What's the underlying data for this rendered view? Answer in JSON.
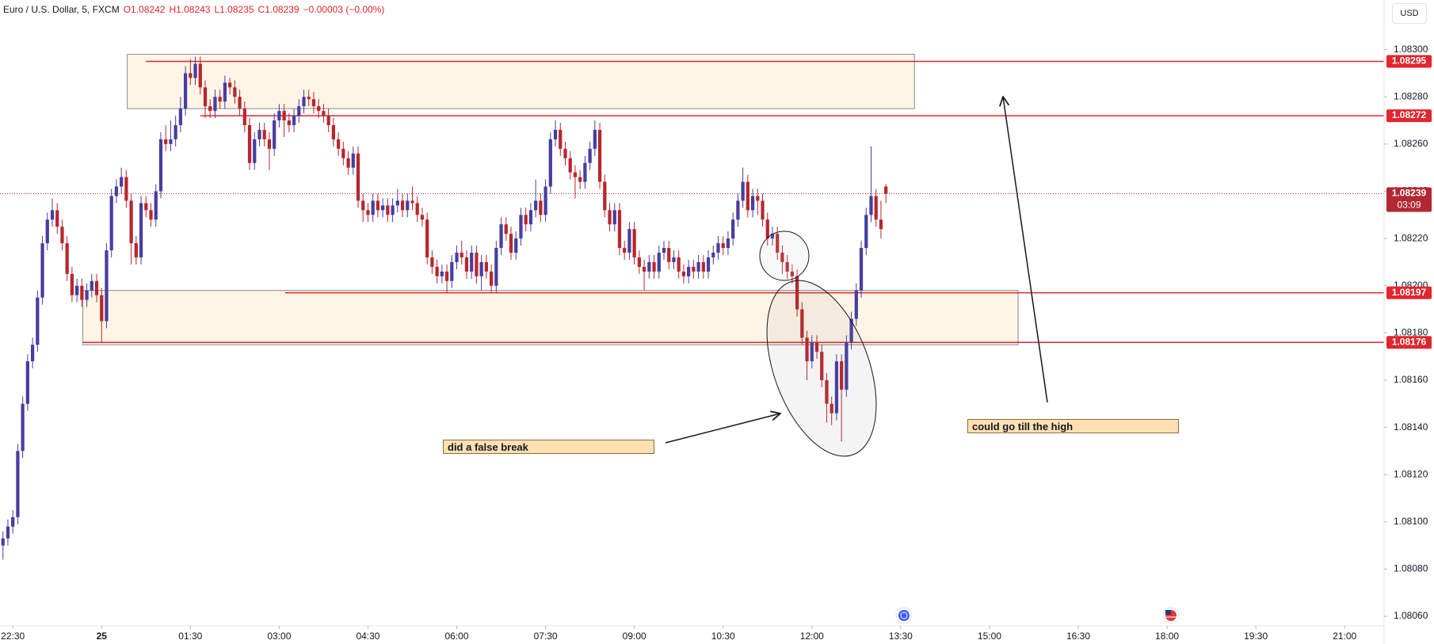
{
  "chart_data": {
    "type": "candlestick",
    "title": "Euro / U.S. Dollar, 5, FXCM",
    "header": [
      "O1.08242",
      "H1.08243",
      "L1.08235",
      "C1.08239",
      "−0.00003 (−0.00%)"
    ],
    "currency": "USD",
    "up_color": "#463ea0",
    "down_color": "#b8262d",
    "x": [
      -100,
      -95,
      -90,
      -85,
      -80,
      -75,
      -70,
      -65,
      -60,
      -55,
      -50,
      -45,
      -40,
      -35,
      -30,
      -25,
      -20,
      -15,
      -10,
      -5,
      0,
      5,
      10,
      15,
      20,
      25,
      30,
      35,
      40,
      45,
      50,
      55,
      60,
      65,
      70,
      75,
      80,
      85,
      90,
      95,
      100,
      105,
      110,
      115,
      120,
      125,
      130,
      135,
      140,
      145,
      150,
      155,
      160,
      165,
      170,
      175,
      180,
      185,
      190,
      195,
      200,
      205,
      210,
      215,
      220,
      225,
      230,
      235,
      240,
      245,
      250,
      255,
      260,
      265,
      270,
      275,
      280,
      285,
      290,
      295,
      300,
      305,
      310,
      315,
      320,
      325,
      330,
      335,
      340,
      345,
      350,
      355,
      360,
      365,
      370,
      375,
      380,
      385,
      390,
      395,
      400,
      405,
      410,
      415,
      420,
      425,
      430,
      435,
      440,
      445,
      450,
      455,
      460,
      465,
      470,
      475,
      480,
      485,
      490,
      495,
      500,
      505,
      510,
      515,
      520,
      525,
      530,
      535,
      540,
      545,
      550,
      555,
      560,
      565,
      570,
      575,
      580,
      585,
      590,
      595,
      600,
      605,
      610,
      615,
      620,
      625,
      630,
      635,
      640,
      645,
      650,
      655,
      660,
      665,
      670,
      675,
      680,
      685,
      690,
      695,
      700,
      705,
      710,
      715,
      720,
      725,
      730,
      735,
      740,
      745,
      750,
      755,
      760,
      765,
      770,
      775,
      780,
      785,
      790,
      795
    ],
    "open": [
      1.0809,
      1.08093,
      1.08098,
      1.08102,
      1.0813,
      1.0815,
      1.08168,
      1.08175,
      1.08195,
      1.08218,
      1.08228,
      1.08232,
      1.08225,
      1.08218,
      1.08205,
      1.08196,
      1.082,
      1.08194,
      1.08198,
      1.08202,
      1.08196,
      1.08185,
      1.08215,
      1.08238,
      1.08242,
      1.08246,
      1.08236,
      1.08218,
      1.08212,
      1.08235,
      1.08232,
      1.08228,
      1.0824,
      1.08262,
      1.0826,
      1.08262,
      1.08268,
      1.08275,
      1.0829,
      1.08288,
      1.08294,
      1.08284,
      1.08276,
      1.08274,
      1.0828,
      1.08278,
      1.08286,
      1.08284,
      1.0828,
      1.08275,
      1.08268,
      1.08252,
      1.08262,
      1.08266,
      1.08262,
      1.08258,
      1.0827,
      1.08274,
      1.0827,
      1.08268,
      1.08272,
      1.08276,
      1.0828,
      1.08279,
      1.08276,
      1.08274,
      1.08272,
      1.08268,
      1.08262,
      1.08258,
      1.08254,
      1.0825,
      1.08256,
      1.08236,
      1.08232,
      1.0823,
      1.08236,
      1.08232,
      1.08234,
      1.0823,
      1.08234,
      1.08236,
      1.08232,
      1.08236,
      1.08235,
      1.0823,
      1.08228,
      1.08212,
      1.08208,
      1.08204,
      1.08206,
      1.08202,
      1.0821,
      1.08214,
      1.08212,
      1.08206,
      1.08214,
      1.08204,
      1.0821,
      1.08206,
      1.082,
      1.08216,
      1.08226,
      1.08222,
      1.08214,
      1.0822,
      1.0823,
      1.08226,
      1.08232,
      1.08236,
      1.0823,
      1.08242,
      1.08262,
      1.08266,
      1.08258,
      1.08254,
      1.08248,
      1.08246,
      1.08244,
      1.08252,
      1.08258,
      1.08266,
      1.08244,
      1.08232,
      1.08226,
      1.08232,
      1.08216,
      1.08214,
      1.08224,
      1.08212,
      1.08208,
      1.08206,
      1.0821,
      1.08206,
      1.08214,
      1.08216,
      1.0821,
      1.08212,
      1.08206,
      1.08204,
      1.08208,
      1.08206,
      1.0821,
      1.08206,
      1.08212,
      1.08214,
      1.08218,
      1.08216,
      1.0822,
      1.08228,
      1.08236,
      1.08244,
      1.08232,
      1.08238,
      1.08236,
      1.08228,
      1.0822,
      1.08222,
      1.08214,
      1.0821,
      1.08206,
      1.08204,
      1.0819,
      1.08178,
      1.08168,
      1.08176,
      1.08172,
      1.0816,
      1.0815,
      1.08146,
      1.08168,
      1.08156,
      1.08176,
      1.08186,
      1.08198,
      1.08216,
      1.0823,
      1.08238,
      1.08228,
      1.08242
    ],
    "high": [
      1.08096,
      1.08101,
      1.08105,
      1.08133,
      1.08153,
      1.08171,
      1.08178,
      1.08198,
      1.08221,
      1.08231,
      1.08237,
      1.08235,
      1.08228,
      1.08221,
      1.08208,
      1.08203,
      1.08203,
      1.08201,
      1.08205,
      1.08205,
      1.08199,
      1.08218,
      1.08241,
      1.08245,
      1.0825,
      1.08249,
      1.08239,
      1.08221,
      1.08238,
      1.08238,
      1.08235,
      1.08243,
      1.08265,
      1.08268,
      1.0827,
      1.08272,
      1.0828,
      1.08293,
      1.08296,
      1.08297,
      1.08297,
      1.08287,
      1.08279,
      1.08283,
      1.08283,
      1.08289,
      1.08288,
      1.08287,
      1.08283,
      1.08278,
      1.08271,
      1.08265,
      1.08269,
      1.08269,
      1.08265,
      1.08273,
      1.08277,
      1.08277,
      1.08273,
      1.08275,
      1.08279,
      1.08283,
      1.08283,
      1.08282,
      1.08279,
      1.08277,
      1.08275,
      1.08271,
      1.08265,
      1.08261,
      1.08257,
      1.08259,
      1.08259,
      1.08239,
      1.08235,
      1.08239,
      1.08239,
      1.08237,
      1.08237,
      1.08237,
      1.08241,
      1.08239,
      1.08239,
      1.08242,
      1.08238,
      1.08233,
      1.08231,
      1.08215,
      1.08211,
      1.08209,
      1.08209,
      1.08213,
      1.08217,
      1.08219,
      1.08215,
      1.08217,
      1.08217,
      1.08213,
      1.08213,
      1.08209,
      1.08219,
      1.08229,
      1.08229,
      1.08225,
      1.08223,
      1.08233,
      1.08233,
      1.08235,
      1.08245,
      1.08239,
      1.08245,
      1.08265,
      1.0827,
      1.08269,
      1.08261,
      1.08257,
      1.08251,
      1.08249,
      1.08255,
      1.08261,
      1.0827,
      1.08269,
      1.08247,
      1.08235,
      1.08235,
      1.08235,
      1.08219,
      1.08227,
      1.08227,
      1.08215,
      1.08211,
      1.08213,
      1.08213,
      1.08217,
      1.08219,
      1.08219,
      1.08215,
      1.08215,
      1.08209,
      1.08211,
      1.08211,
      1.08213,
      1.08213,
      1.08215,
      1.08217,
      1.08221,
      1.08221,
      1.08223,
      1.08231,
      1.08239,
      1.0825,
      1.08247,
      1.08241,
      1.08241,
      1.08239,
      1.08231,
      1.08225,
      1.08225,
      1.08217,
      1.08213,
      1.08209,
      1.08207,
      1.08193,
      1.08181,
      1.08179,
      1.08179,
      1.08175,
      1.08163,
      1.08153,
      1.08171,
      1.08171,
      1.08179,
      1.08189,
      1.08201,
      1.08219,
      1.08233,
      1.08259,
      1.08241,
      1.08236,
      1.08243
    ],
    "low": [
      1.08084,
      1.0809,
      1.08095,
      1.08099,
      1.08127,
      1.08147,
      1.08165,
      1.08172,
      1.08192,
      1.08215,
      1.08225,
      1.08222,
      1.08215,
      1.08202,
      1.08193,
      1.08193,
      1.08191,
      1.08191,
      1.08195,
      1.08193,
      1.08176,
      1.08182,
      1.08212,
      1.08235,
      1.08239,
      1.08233,
      1.08209,
      1.08209,
      1.08209,
      1.08229,
      1.08225,
      1.08225,
      1.08237,
      1.08257,
      1.08257,
      1.08259,
      1.08265,
      1.08272,
      1.08285,
      1.08285,
      1.08281,
      1.08271,
      1.08271,
      1.08271,
      1.08275,
      1.08275,
      1.08281,
      1.08277,
      1.08272,
      1.08265,
      1.08249,
      1.08249,
      1.08259,
      1.08259,
      1.08249,
      1.08255,
      1.08267,
      1.08263,
      1.08265,
      1.08265,
      1.08269,
      1.08273,
      1.08276,
      1.08273,
      1.08271,
      1.08269,
      1.08265,
      1.08259,
      1.08255,
      1.08251,
      1.08247,
      1.08247,
      1.08233,
      1.08227,
      1.08227,
      1.08227,
      1.08229,
      1.08229,
      1.08227,
      1.08227,
      1.08231,
      1.08229,
      1.08229,
      1.08232,
      1.08227,
      1.08225,
      1.08209,
      1.08205,
      1.08201,
      1.08201,
      1.08197,
      1.08199,
      1.08207,
      1.08209,
      1.08203,
      1.08203,
      1.08201,
      1.08198,
      1.08203,
      1.08197,
      1.08197,
      1.08213,
      1.08219,
      1.08211,
      1.08211,
      1.08217,
      1.08223,
      1.08223,
      1.08229,
      1.08227,
      1.08227,
      1.08239,
      1.08259,
      1.08255,
      1.08251,
      1.08245,
      1.08237,
      1.08241,
      1.08241,
      1.08249,
      1.08255,
      1.08241,
      1.08229,
      1.08223,
      1.08223,
      1.08213,
      1.08211,
      1.08211,
      1.08209,
      1.08205,
      1.08198,
      1.08203,
      1.08203,
      1.08203,
      1.08211,
      1.08207,
      1.08207,
      1.08203,
      1.08201,
      1.08201,
      1.08203,
      1.08203,
      1.08203,
      1.08203,
      1.08209,
      1.08211,
      1.08213,
      1.08213,
      1.08217,
      1.08225,
      1.08233,
      1.08229,
      1.08229,
      1.0823,
      1.08225,
      1.08217,
      1.08217,
      1.08211,
      1.08205,
      1.08203,
      1.08201,
      1.08187,
      1.08175,
      1.0816,
      1.08165,
      1.08169,
      1.08157,
      1.08142,
      1.08141,
      1.08143,
      1.08134,
      1.08153,
      1.08173,
      1.08183,
      1.08195,
      1.08213,
      1.08227,
      1.08225,
      1.0822,
      1.08235
    ],
    "close": [
      1.08093,
      1.08098,
      1.08102,
      1.0813,
      1.0815,
      1.08168,
      1.08175,
      1.08195,
      1.08218,
      1.08228,
      1.08232,
      1.08225,
      1.08218,
      1.08205,
      1.08196,
      1.082,
      1.08194,
      1.08198,
      1.08202,
      1.08196,
      1.08185,
      1.08215,
      1.08238,
      1.08242,
      1.08246,
      1.08236,
      1.08218,
      1.08212,
      1.08235,
      1.08232,
      1.08228,
      1.0824,
      1.08262,
      1.0826,
      1.08262,
      1.08268,
      1.08275,
      1.0829,
      1.08288,
      1.08294,
      1.08284,
      1.08276,
      1.08274,
      1.0828,
      1.08278,
      1.08286,
      1.08284,
      1.0828,
      1.08275,
      1.08268,
      1.08252,
      1.08262,
      1.08266,
      1.08262,
      1.08258,
      1.0827,
      1.08274,
      1.0827,
      1.08268,
      1.08272,
      1.08276,
      1.0828,
      1.08279,
      1.08276,
      1.08274,
      1.08272,
      1.08268,
      1.08262,
      1.08258,
      1.08254,
      1.0825,
      1.08256,
      1.08236,
      1.08232,
      1.0823,
      1.08236,
      1.08232,
      1.08234,
      1.0823,
      1.08234,
      1.08236,
      1.08232,
      1.08236,
      1.08235,
      1.0823,
      1.08228,
      1.08212,
      1.08208,
      1.08204,
      1.08206,
      1.08202,
      1.0821,
      1.08214,
      1.08212,
      1.08206,
      1.08214,
      1.08204,
      1.0821,
      1.08206,
      1.082,
      1.08216,
      1.08226,
      1.08222,
      1.08214,
      1.0822,
      1.0823,
      1.08226,
      1.08232,
      1.08236,
      1.0823,
      1.08242,
      1.08262,
      1.08266,
      1.08258,
      1.08254,
      1.08248,
      1.08246,
      1.08244,
      1.08252,
      1.08258,
      1.08266,
      1.08244,
      1.08232,
      1.08226,
      1.08232,
      1.08216,
      1.08214,
      1.08224,
      1.08212,
      1.08208,
      1.08206,
      1.0821,
      1.08206,
      1.08214,
      1.08216,
      1.0821,
      1.08212,
      1.08206,
      1.08204,
      1.08208,
      1.08206,
      1.0821,
      1.08206,
      1.08212,
      1.08214,
      1.08218,
      1.08216,
      1.0822,
      1.08228,
      1.08236,
      1.08244,
      1.08232,
      1.08238,
      1.08236,
      1.08228,
      1.0822,
      1.08222,
      1.08214,
      1.0821,
      1.08206,
      1.08204,
      1.0819,
      1.08178,
      1.08168,
      1.08176,
      1.08172,
      1.0816,
      1.0815,
      1.08146,
      1.08168,
      1.08156,
      1.08176,
      1.08186,
      1.08198,
      1.08216,
      1.0823,
      1.08238,
      1.08228,
      1.08224,
      1.08239
    ],
    "xlim": [
      -103,
      1300
    ],
    "xticks": [
      {
        "value": -90,
        "label": "22:30"
      },
      {
        "value": 0,
        "label": "25"
      },
      {
        "value": 90,
        "label": "01:30"
      },
      {
        "value": 180,
        "label": "03:00"
      },
      {
        "value": 270,
        "label": "04:30"
      },
      {
        "value": 360,
        "label": "06:00"
      },
      {
        "value": 450,
        "label": "07:30"
      },
      {
        "value": 540,
        "label": "09:00"
      },
      {
        "value": 630,
        "label": "10:30"
      },
      {
        "value": 720,
        "label": "12:00"
      },
      {
        "value": 810,
        "label": "13:30"
      },
      {
        "value": 900,
        "label": "15:00"
      },
      {
        "value": 990,
        "label": "16:30"
      },
      {
        "value": 1080,
        "label": "18:00"
      },
      {
        "value": 1170,
        "label": "19:30"
      },
      {
        "value": 1260,
        "label": "21:00"
      }
    ],
    "ylim": [
      1.08056,
      1.08321
    ],
    "yticks": [
      {
        "value": 1.083,
        "label": "1.08300"
      },
      {
        "value": 1.0828,
        "label": "1.08280"
      },
      {
        "value": 1.0826,
        "label": "1.08260"
      },
      {
        "value": 1.0824,
        "label": "1.08240"
      },
      {
        "value": 1.0822,
        "label": "1.08220"
      },
      {
        "value": 1.082,
        "label": "1.08200"
      },
      {
        "value": 1.0818,
        "label": "1.08180"
      },
      {
        "value": 1.0816,
        "label": "1.08160"
      },
      {
        "value": 1.0814,
        "label": "1.08140"
      },
      {
        "value": 1.0812,
        "label": "1.08120"
      },
      {
        "value": 1.081,
        "label": "1.08100"
      },
      {
        "value": 1.0808,
        "label": "1.08080"
      },
      {
        "value": 1.0806,
        "label": "1.08060"
      }
    ],
    "hline_color": "#e0262e",
    "hlines": [
      {
        "value": 1.08295,
        "start": 45
      },
      {
        "value": 1.08272,
        "start": 100
      },
      {
        "value": 1.08197,
        "start": 186
      },
      {
        "value": 1.08176,
        "start": -19
      }
    ],
    "last_price": {
      "value": 1.08239,
      "countdown": "03:09",
      "color": "#b22833"
    },
    "zones": [
      {
        "x": [
          26,
          824
        ],
        "y": [
          1.08275,
          1.08298
        ]
      },
      {
        "x": [
          -19,
          929
        ],
        "y": [
          1.08175,
          1.08198
        ]
      }
    ],
    "annotations": [
      "did a false break",
      "could go till the high"
    ]
  }
}
